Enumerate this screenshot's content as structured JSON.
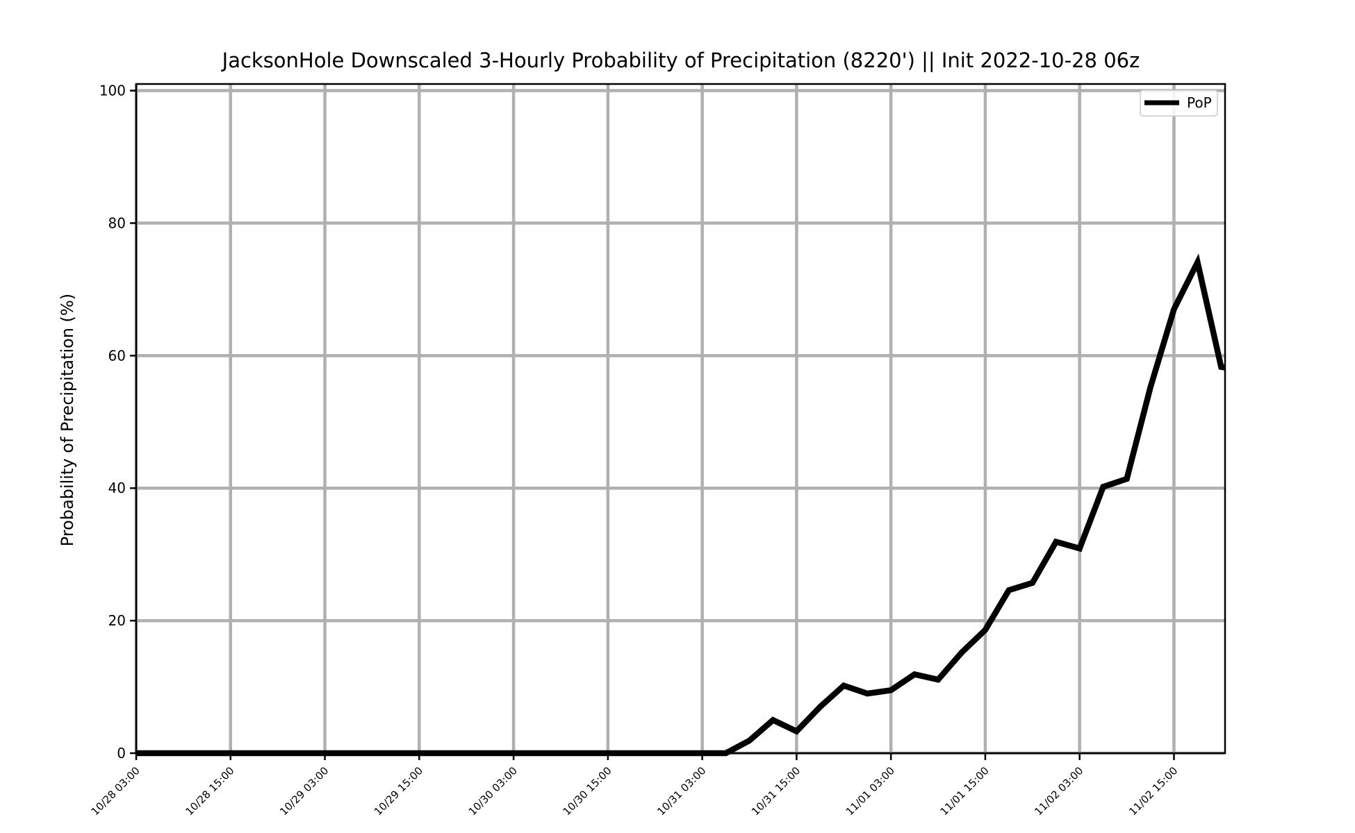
{
  "chart_data": {
    "type": "line",
    "title": "JacksonHole Downscaled 3-Hourly Probability of Precipitation (8220') || Init 2022-10-28 06z",
    "xlabel": "",
    "ylabel": "Probability of Precipitation (%)",
    "ylim": [
      0,
      101
    ],
    "yticks": [
      0,
      20,
      40,
      60,
      80,
      100
    ],
    "xlim": [
      "10/28 03:00",
      "11/02 21:30"
    ],
    "xticks": [
      "10/28 03:00",
      "10/28 15:00",
      "10/29 03:00",
      "10/29 15:00",
      "10/30 03:00",
      "10/30 15:00",
      "10/31 03:00",
      "10/31 15:00",
      "11/01 03:00",
      "11/01 15:00",
      "11/02 03:00",
      "11/02 15:00"
    ],
    "grid": true,
    "legend": {
      "position": "top-right",
      "entries": [
        "PoP"
      ]
    },
    "colors": {
      "line": "#000000",
      "grid": "#b0b0b0"
    },
    "series": [
      {
        "name": "PoP",
        "x": [
          "10/28 03:00",
          "10/28 06:00",
          "10/28 09:00",
          "10/28 12:00",
          "10/28 15:00",
          "10/28 18:00",
          "10/28 21:00",
          "10/29 00:00",
          "10/29 03:00",
          "10/29 06:00",
          "10/29 09:00",
          "10/29 12:00",
          "10/29 15:00",
          "10/29 18:00",
          "10/29 21:00",
          "10/30 00:00",
          "10/30 03:00",
          "10/30 06:00",
          "10/30 09:00",
          "10/30 12:00",
          "10/30 15:00",
          "10/30 18:00",
          "10/30 21:00",
          "10/31 00:00",
          "10/31 03:00",
          "10/31 06:00",
          "10/31 09:00",
          "10/31 12:00",
          "10/31 15:00",
          "10/31 18:00",
          "10/31 21:00",
          "11/01 00:00",
          "11/01 03:00",
          "11/01 06:00",
          "11/01 09:00",
          "11/01 12:00",
          "11/01 15:00",
          "11/01 18:00",
          "11/01 21:00",
          "11/02 00:00",
          "11/02 03:00",
          "11/02 06:00",
          "11/02 09:00",
          "11/02 12:00",
          "11/02 15:00",
          "11/02 18:00",
          "11/02 21:00",
          "11/02 21:30"
        ],
        "values": [
          0,
          0,
          0,
          0,
          0,
          0,
          0,
          0,
          0,
          0,
          0,
          0,
          0,
          0,
          0,
          0,
          0,
          0,
          0,
          0,
          0,
          0,
          0,
          0,
          0,
          0,
          1.9,
          5.0,
          3.3,
          7.0,
          10.2,
          9.0,
          9.5,
          11.9,
          11.1,
          15.2,
          18.6,
          24.6,
          25.7,
          31.9,
          30.9,
          40.2,
          41.4,
          55.2,
          67.0,
          74.1,
          58.3,
          58.2
        ]
      }
    ]
  }
}
